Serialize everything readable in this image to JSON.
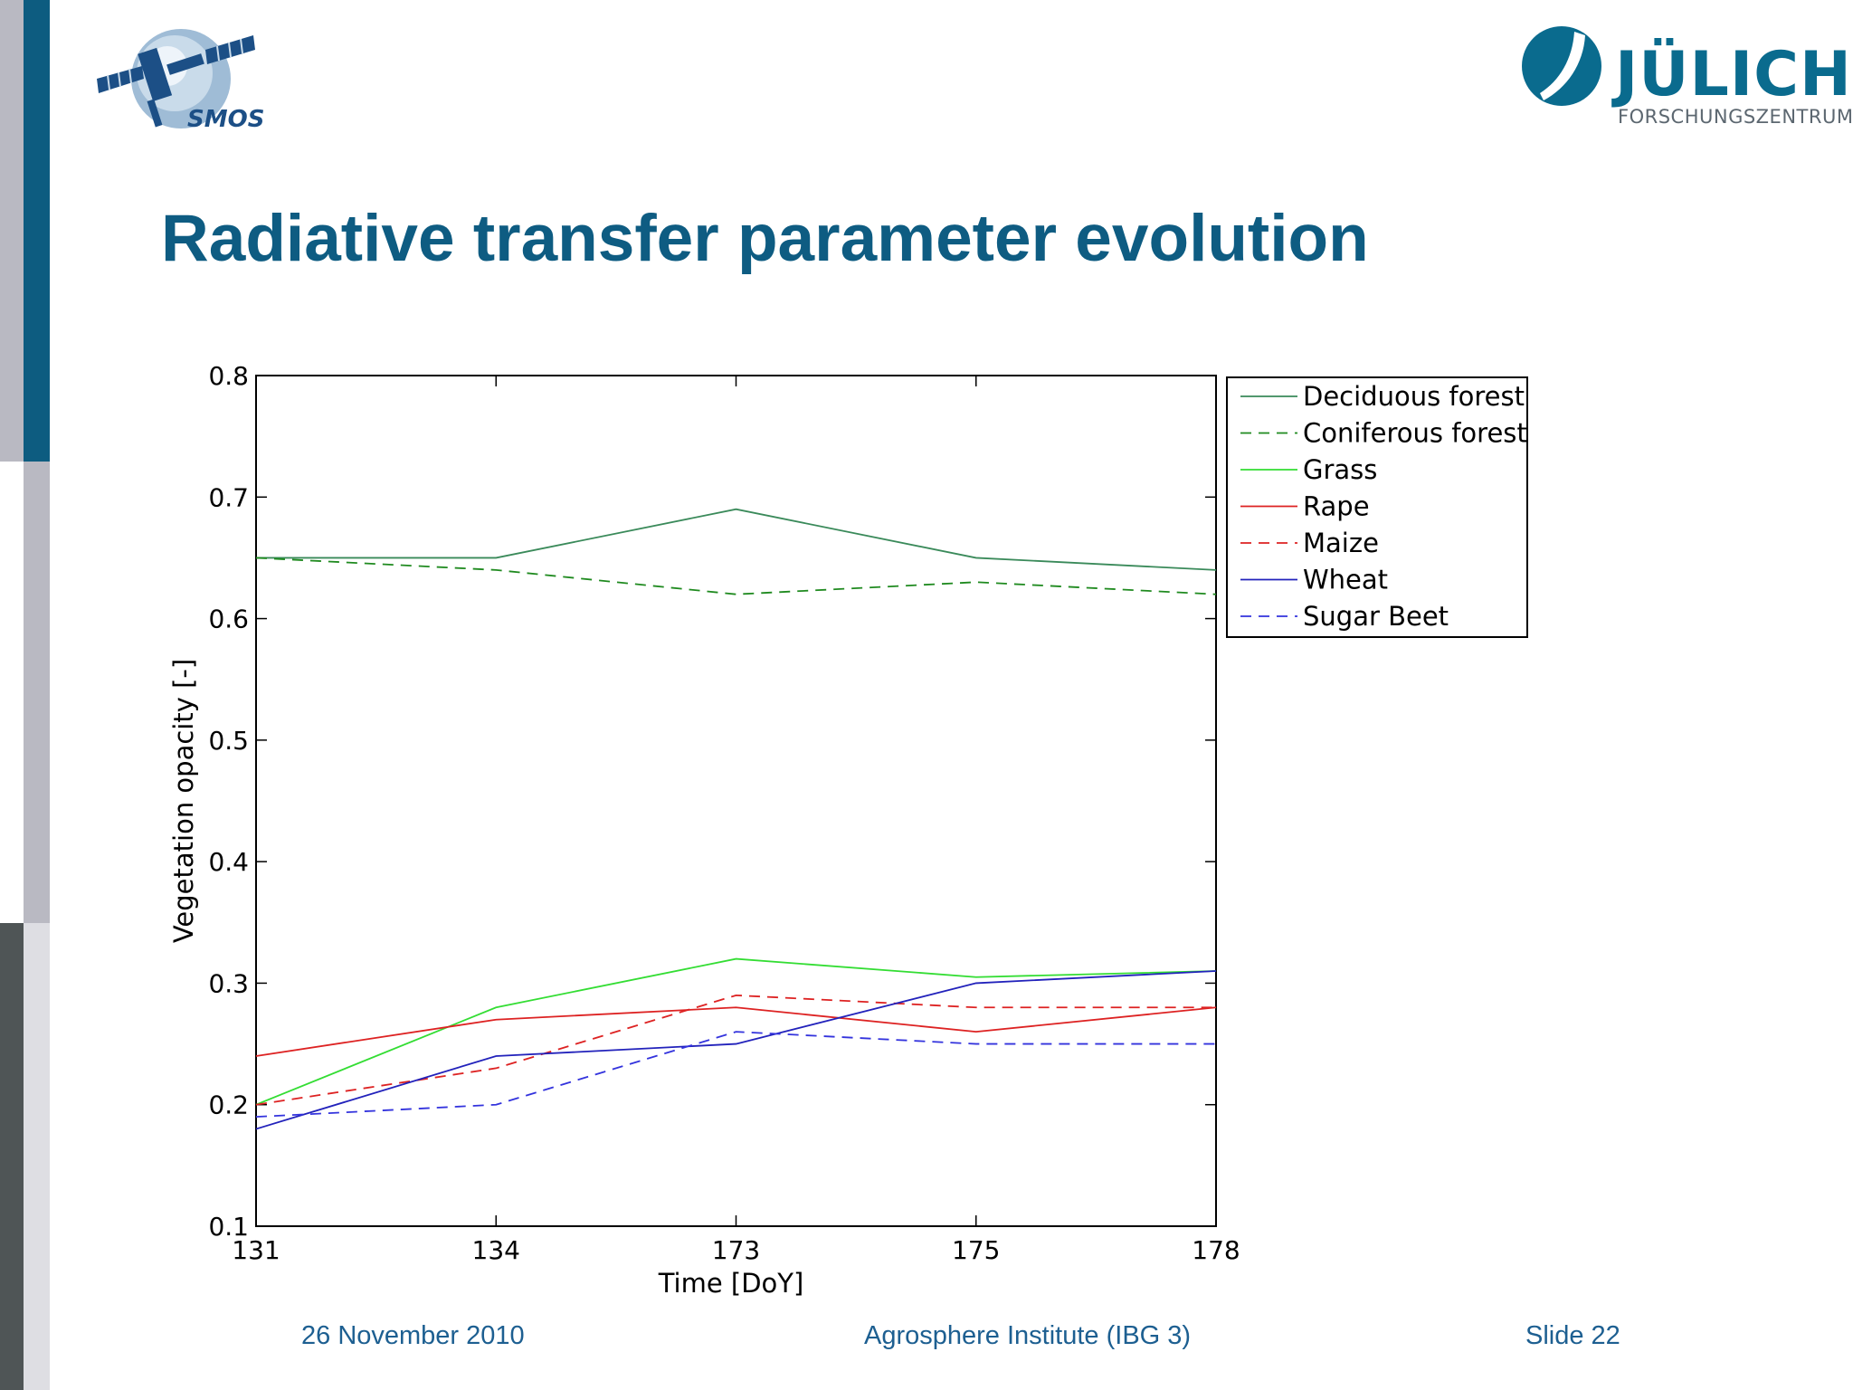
{
  "slide": {
    "title": "Radiative transfer parameter evolution",
    "footer_date": "26 November 2010",
    "footer_institute": "Agrosphere Institute (IBG 3)",
    "footer_slide": "Slide 22"
  },
  "logos": {
    "left_text": "SMOS",
    "right_name": "JÜLICH",
    "right_sub": "FORSCHUNGSZENTRUM"
  },
  "colors": {
    "title": "#0e5c82",
    "sidebar_teal": "#0d5c80",
    "sidebar_gray": "#b9b9c2",
    "sidebar_dark": "#4f5556",
    "footer": "#1d5f91"
  },
  "chart_data": {
    "type": "line",
    "title": "",
    "xlabel": "Time [DoY]",
    "ylabel": "Vegetation opacity [-]",
    "categories": [
      "131",
      "134",
      "173",
      "175",
      "178"
    ],
    "ylim": [
      0.1,
      0.8
    ],
    "yticks": [
      "0.1",
      "0.2",
      "0.3",
      "0.4",
      "0.5",
      "0.6",
      "0.7",
      "0.8"
    ],
    "grid": false,
    "legend_position": "outside-right-top",
    "series": [
      {
        "name": "Deciduous forest",
        "values": [
          0.65,
          0.65,
          0.69,
          0.65,
          0.64
        ],
        "color": "#3a8a5a",
        "dash": false
      },
      {
        "name": "Coniferous forest",
        "values": [
          0.65,
          0.64,
          0.62,
          0.63,
          0.62
        ],
        "color": "#1f8a1f",
        "dash": true
      },
      {
        "name": "Grass",
        "values": [
          0.2,
          0.28,
          0.32,
          0.305,
          0.31
        ],
        "color": "#33dd33",
        "dash": false
      },
      {
        "name": "Rape",
        "values": [
          0.24,
          0.27,
          0.28,
          0.26,
          0.28
        ],
        "color": "#dd2222",
        "dash": false
      },
      {
        "name": "Maize",
        "values": [
          0.2,
          0.23,
          0.29,
          0.28,
          0.28
        ],
        "color": "#dd2222",
        "dash": true
      },
      {
        "name": "Wheat",
        "values": [
          0.18,
          0.24,
          0.25,
          0.3,
          0.31
        ],
        "color": "#2222bb",
        "dash": false
      },
      {
        "name": "Sugar Beet",
        "values": [
          0.19,
          0.2,
          0.26,
          0.25,
          0.25
        ],
        "color": "#3333dd",
        "dash": true
      }
    ]
  }
}
